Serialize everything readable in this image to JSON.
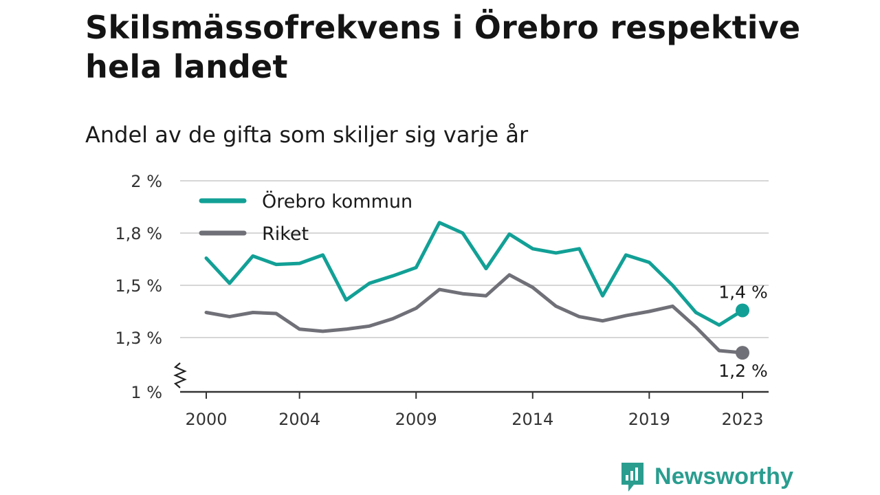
{
  "chart_data": {
    "type": "line",
    "title": "Skilsmässofrekvens i Örebro respektive hela landet",
    "subtitle": "Andel av de gifta som skiljer sig varje år",
    "y_ticks": [
      "1 %",
      "1,3 %",
      "1,5 %",
      "1,8 %",
      "2 %"
    ],
    "x_ticks": [
      "2000",
      "2004",
      "2009",
      "2014",
      "2019",
      "2023"
    ],
    "ylim": [
      1.0,
      2.0
    ],
    "y_axis_break": true,
    "x": [
      2000,
      2001,
      2002,
      2003,
      2004,
      2005,
      2006,
      2007,
      2008,
      2009,
      2010,
      2011,
      2012,
      2013,
      2014,
      2015,
      2016,
      2017,
      2018,
      2019,
      2020,
      2021,
      2022,
      2023
    ],
    "legend_position": "top-left",
    "series": [
      {
        "name": "Örebro kommun",
        "color": "#12a096",
        "values": [
          1.63,
          1.51,
          1.64,
          1.6,
          1.605,
          1.645,
          1.43,
          1.51,
          1.545,
          1.585,
          1.8,
          1.75,
          1.58,
          1.745,
          1.675,
          1.655,
          1.675,
          1.45,
          1.645,
          1.61,
          1.5,
          1.37,
          1.31,
          1.38
        ],
        "end_label": "1,4 %"
      },
      {
        "name": "Riket",
        "color": "#707078",
        "values": [
          1.37,
          1.35,
          1.37,
          1.365,
          1.29,
          1.28,
          1.29,
          1.305,
          1.34,
          1.39,
          1.48,
          1.46,
          1.45,
          1.55,
          1.49,
          1.4,
          1.35,
          1.33,
          1.355,
          1.375,
          1.4,
          1.3,
          1.19,
          1.18
        ],
        "end_label": "1,2 %"
      }
    ]
  },
  "branding": {
    "logo_text": "Newsworthy",
    "logo_color": "#2a9d8f"
  }
}
